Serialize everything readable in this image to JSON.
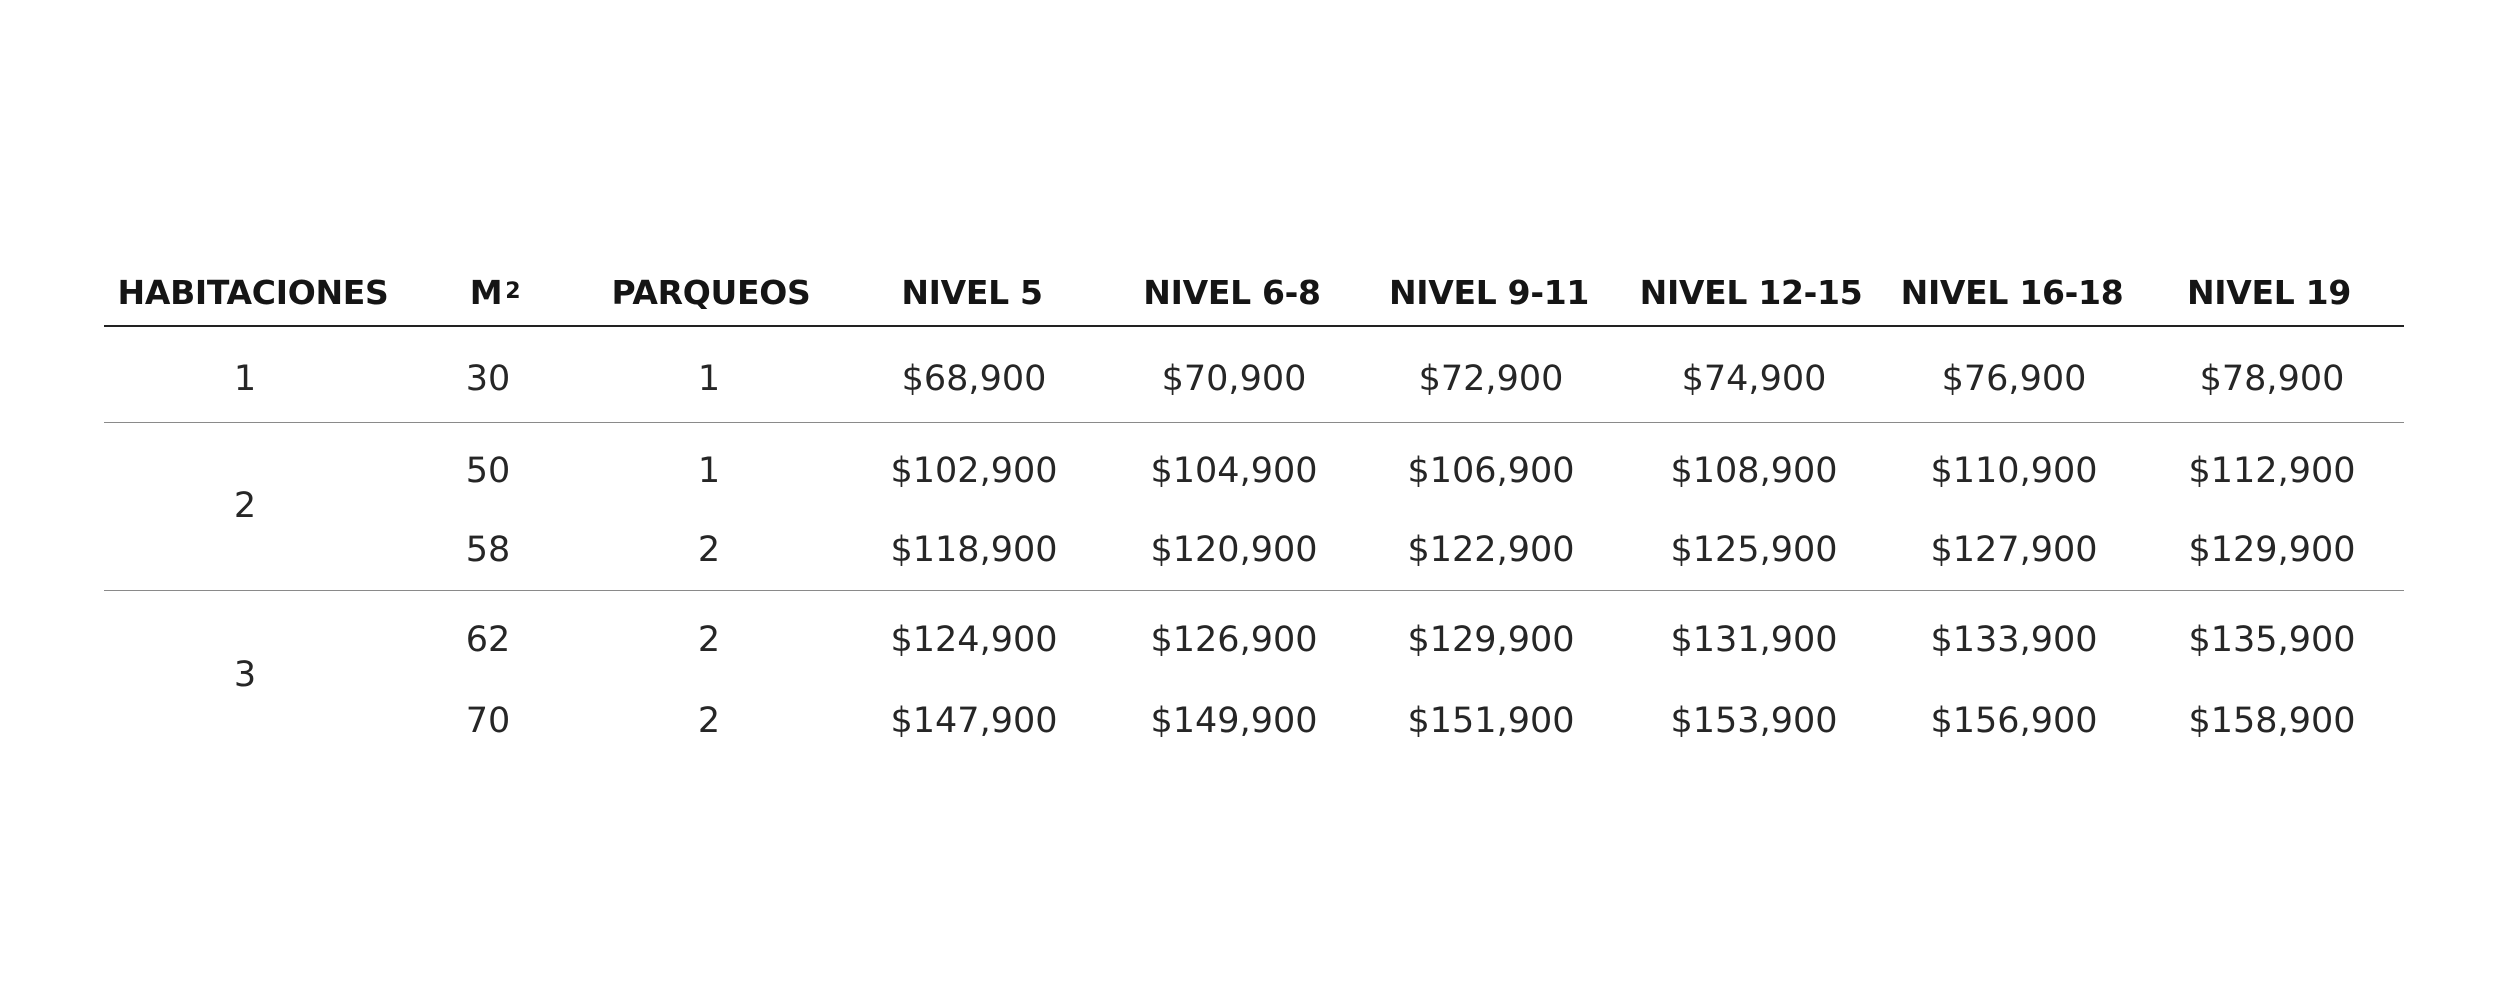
{
  "table": {
    "headers": {
      "habitaciones": "HABITACIONES",
      "m2": "M",
      "m2_sup": "2",
      "parqueos": "PARQUEOS",
      "levels": [
        "NIVEL  5",
        "NIVEL  6-8",
        "NIVEL  9-11",
        "NIVEL 12-15",
        "NIVEL 16-18",
        "NIVEL 19"
      ]
    },
    "groups": [
      {
        "habitaciones": "1",
        "rows": [
          {
            "m2": "30",
            "parqueos": "1",
            "prices": [
              "$68,900",
              "$70,900",
              "$72,900",
              "$74,900",
              "$76,900",
              "$78,900"
            ]
          }
        ]
      },
      {
        "habitaciones": "2",
        "rows": [
          {
            "m2": "50",
            "parqueos": "1",
            "prices": [
              "$102,900",
              "$104,900",
              "$106,900",
              "$108,900",
              "$110,900",
              "$112,900"
            ]
          },
          {
            "m2": "58",
            "parqueos": "2",
            "prices": [
              "$118,900",
              "$120,900",
              "$122,900",
              "$125,900",
              "$127,900",
              "$129,900"
            ]
          }
        ]
      },
      {
        "habitaciones": "3",
        "rows": [
          {
            "m2": "62",
            "parqueos": "2",
            "prices": [
              "$124,900",
              "$126,900",
              "$129,900",
              "$131,900",
              "$133,900",
              "$135,900"
            ]
          },
          {
            "m2": "70",
            "parqueos": "2",
            "prices": [
              "$147,900",
              "$149,900",
              "$151,900",
              "$153,900",
              "$156,900",
              "$158,900"
            ]
          }
        ]
      }
    ]
  }
}
